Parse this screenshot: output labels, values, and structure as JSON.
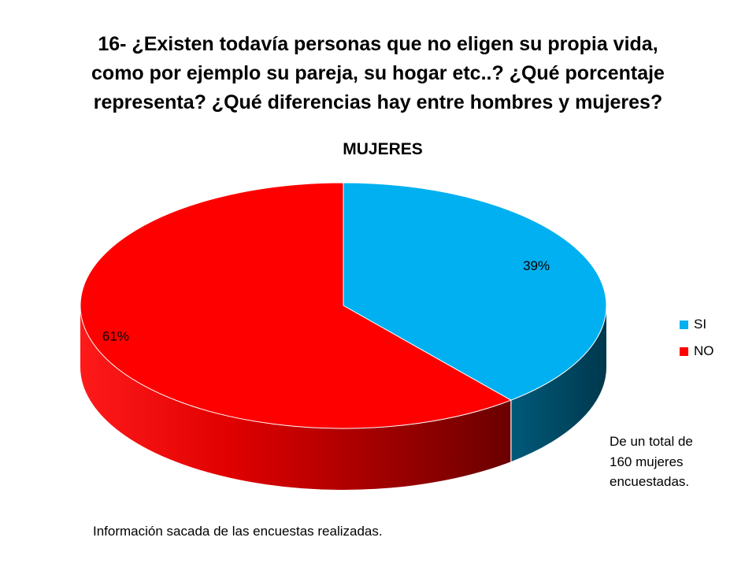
{
  "slide": {
    "title_lines": [
      "16- ¿Existen todavía personas que no eligen su propia vida,",
      "como por ejemplo su pareja, su hogar etc..? ¿Qué porcentaje",
      "representa? ¿Qué diferencias hay entre hombres y mujeres?"
    ],
    "note_lines": [
      "De un total de",
      "160 mujeres",
      "encuestadas."
    ],
    "footer": "Información sacada de las encuestas realizadas."
  },
  "chart_data": {
    "type": "pie",
    "title": "MUJERES",
    "three_d": true,
    "categories": [
      "SI",
      "NO"
    ],
    "values": [
      39,
      61
    ],
    "data_labels": [
      "39%",
      "61%"
    ],
    "colors": [
      "#00B0F0",
      "#FF0000"
    ],
    "legend_position": "right"
  }
}
